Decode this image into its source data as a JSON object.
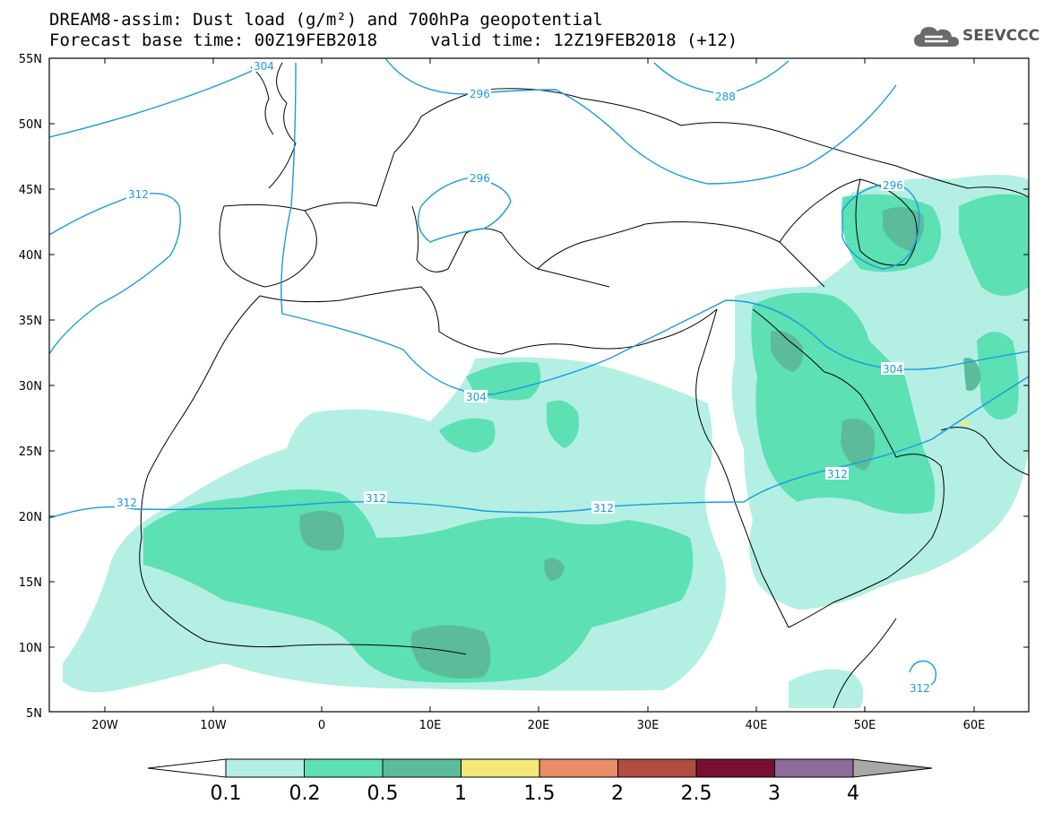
{
  "header": {
    "title_line1": "DREAM8-assim: Dust load (g/m²) and 700hPa geopotential",
    "title_line2": "Forecast base time: 00Z19FEB2018",
    "valid_time": "valid time: 12Z19FEB2018 (+12)",
    "logo_text": "SEEVCCC",
    "logo_icon": "cloud-icon"
  },
  "axes": {
    "lat_labels": [
      "55N",
      "50N",
      "45N",
      "40N",
      "35N",
      "30N",
      "25N",
      "20N",
      "15N",
      "10N",
      "5N"
    ],
    "lon_labels": [
      "20W",
      "10W",
      "0",
      "10E",
      "20E",
      "30E",
      "40E",
      "50E",
      "60E"
    ]
  },
  "contours": {
    "color": "#1a9be0",
    "labels": [
      "304",
      "296",
      "288",
      "296",
      "296",
      "312",
      "304",
      "312",
      "312",
      "312",
      "304",
      "312",
      "312"
    ]
  },
  "colorbar": {
    "colors": [
      "#b4efe4",
      "#5ce0b4",
      "#5cbc9a",
      "#f4e878",
      "#e88c6a",
      "#b04c42",
      "#7a1030",
      "#8c6a9c"
    ],
    "under_color": "#ffffff",
    "over_color": "#a8a8a8",
    "tick_labels": [
      "0.1",
      "0.2",
      "0.5",
      "1",
      "1.5",
      "2",
      "2.5",
      "3",
      "4"
    ]
  }
}
